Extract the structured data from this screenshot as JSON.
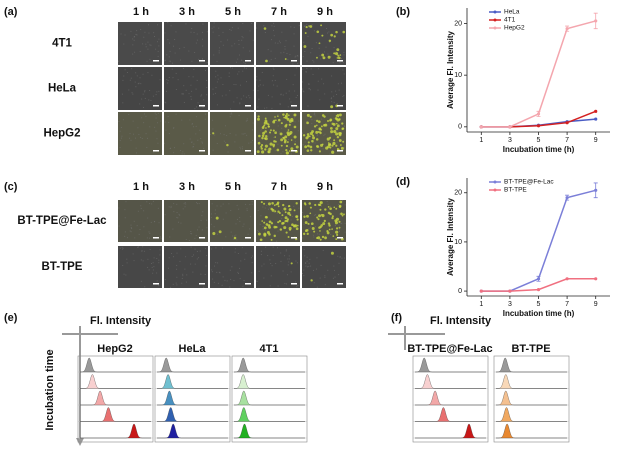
{
  "panels": {
    "a": {
      "label": "(a)",
      "columns": [
        "1 h",
        "3 h",
        "5 h",
        "7 h",
        "9 h"
      ],
      "rows": [
        "4T1",
        "HeLa",
        "HepG2"
      ]
    },
    "c": {
      "label": "(c)",
      "columns": [
        "1 h",
        "3 h",
        "5 h",
        "7 h",
        "9 h"
      ],
      "rows": [
        "BT-TPE@Fe-Lac",
        "BT-TPE"
      ]
    },
    "e": {
      "label": "(e)",
      "x_label": "Fl. Intensity",
      "y_label": "Incubation time",
      "groups": [
        "HepG2",
        "HeLa",
        "4T1"
      ]
    },
    "f": {
      "label": "(f)",
      "x_label": "Fl. Intensity",
      "groups": [
        "BT-TPE@Fe-Lac",
        "BT-TPE"
      ]
    }
  },
  "chart_data": [
    {
      "type": "line",
      "panel": "(b)",
      "x_label": "Incubation time (h)",
      "y_label": "Average Fl. Intensity",
      "x": [
        1,
        3,
        5,
        7,
        9
      ],
      "xlim": [
        0,
        10
      ],
      "xticks": [
        1,
        3,
        5,
        7,
        9
      ],
      "ylim": [
        -1,
        23
      ],
      "yticks": [
        0,
        10,
        20
      ],
      "legend": "upper left",
      "series": [
        {
          "name": "HeLa",
          "color": "#4a5cc4",
          "values": [
            0,
            0,
            0.3,
            1,
            1.5
          ]
        },
        {
          "name": "4T1",
          "color": "#d42020",
          "values": [
            0,
            0,
            0.2,
            0.8,
            3
          ]
        },
        {
          "name": "HepG2",
          "color": "#f4a6ae",
          "values": [
            0,
            0,
            2.5,
            19,
            20.5
          ],
          "errors": [
            0,
            0,
            0.5,
            0.5,
            1.5
          ]
        }
      ]
    },
    {
      "type": "line",
      "panel": "(d)",
      "x_label": "Incubation time (h)",
      "y_label": "Average Fl. Intensity",
      "x": [
        1,
        3,
        5,
        7,
        9
      ],
      "xlim": [
        0,
        10
      ],
      "xticks": [
        1,
        3,
        5,
        7,
        9
      ],
      "ylim": [
        -1,
        23
      ],
      "yticks": [
        0,
        10,
        20
      ],
      "legend": "upper left",
      "series": [
        {
          "name": "BT-TPE@Fe-Lac",
          "color": "#7b7fd8",
          "values": [
            0,
            0,
            2.5,
            19,
            20.5
          ],
          "errors": [
            0,
            0,
            0.5,
            0.5,
            1.5
          ]
        },
        {
          "name": "BT-TPE",
          "color": "#f07080",
          "values": [
            0,
            0,
            0.3,
            2.5,
            2.5
          ]
        }
      ]
    }
  ]
}
